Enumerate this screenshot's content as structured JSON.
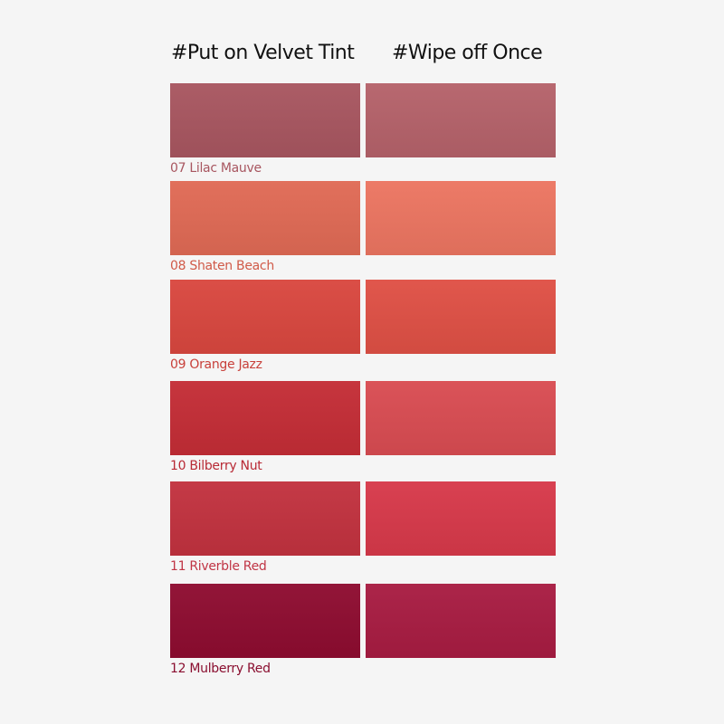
{
  "headers": {
    "applied": "#Put on Velvet Tint",
    "wiped": "#Wipe off Once"
  },
  "shades": [
    {
      "label": "07 Lilac Mauve",
      "applied_color": "#a85660",
      "wiped_color": "#b5626a",
      "label_color": "#a85660"
    },
    {
      "label": "08 Shaten Beach",
      "applied_color": "#e06a55",
      "wiped_color": "#ec7561",
      "label_color": "#d05a48"
    },
    {
      "label": "09 Orange Jazz",
      "applied_color": "#d9473f",
      "wiped_color": "#df5045",
      "label_color": "#c8403a"
    },
    {
      "label": "10 Bilberry Nut",
      "applied_color": "#c42d36",
      "wiped_color": "#d94c52",
      "label_color": "#b82a35"
    },
    {
      "label": "11 Riverble Red",
      "applied_color": "#c2323f",
      "wiped_color": "#d7394a",
      "label_color": "#c03545"
    },
    {
      "label": "12 Mulberry Red",
      "applied_color": "#8e0c30",
      "wiped_color": "#a81c42",
      "label_color": "#8a0f30"
    }
  ]
}
